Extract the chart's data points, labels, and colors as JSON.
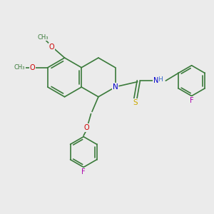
{
  "bg_color": "#ebebeb",
  "bond_color": "#3a7a3a",
  "atom_colors": {
    "N": "#0000cc",
    "O": "#cc0000",
    "S": "#ccaa00",
    "F": "#aa00aa",
    "H": "#3366cc",
    "C": "#3a7a3a"
  },
  "font_size": 7.0,
  "lw": 1.2,
  "figsize": [
    3.0,
    3.0
  ],
  "dpi": 100
}
